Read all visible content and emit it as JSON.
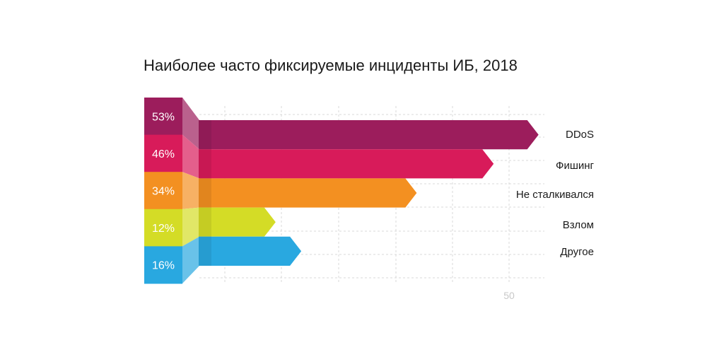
{
  "chart_data": {
    "type": "bar",
    "title": "Наиболее часто фиксируемые инциденты ИБ, 2018",
    "categories": [
      "DDoS",
      "Фишинг",
      "Не сталкивался",
      "Взлом",
      "Другое"
    ],
    "values": [
      53,
      46,
      34,
      12,
      16
    ],
    "value_labels": [
      "53%",
      "46%",
      "34%",
      "12%",
      "16%"
    ],
    "colors": [
      "#9c1d5c",
      "#d81b5a",
      "#f39021",
      "#d4dc26",
      "#29a8e0"
    ],
    "xtick_labels": [
      "50"
    ],
    "grid": true,
    "orientation": "horizontal"
  }
}
